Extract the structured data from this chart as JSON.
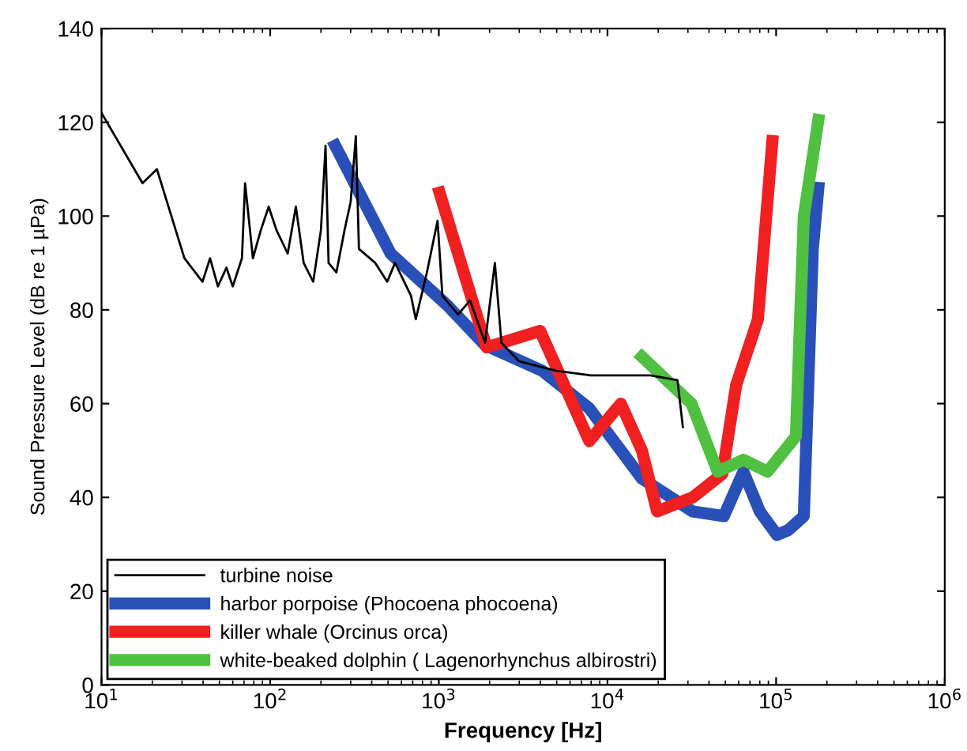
{
  "chart_data": {
    "type": "line",
    "xlabel": "Frequency [Hz]",
    "ylabel": "Sound Pressure Level (dB re 1 µPa)",
    "log": "x",
    "xlim": [
      10,
      1000000
    ],
    "ylim": [
      0,
      140
    ],
    "xticks": [
      {
        "value": 10,
        "label": "10$^{1}$"
      },
      {
        "value": 100,
        "label": "10$^{2}$"
      },
      {
        "value": 1000,
        "label": "10$^{3}$"
      },
      {
        "value": 10000,
        "label": "10$^{4}$"
      },
      {
        "value": 100000,
        "label": "10$^{5}$"
      },
      {
        "value": 1000000,
        "label": "10$^{6}$"
      }
    ],
    "yticks": [
      0,
      20,
      40,
      60,
      80,
      100,
      120,
      140
    ],
    "grid": false,
    "legend": "bottom left",
    "marker": "none",
    "line_style": "solid",
    "series": [
      {
        "name": "turbine noise",
        "color": "#000000",
        "x": [
          10,
          17.5,
          21.3,
          31,
          39.7,
          44,
          49,
          55,
          60,
          68,
          71,
          79,
          88,
          98,
          109,
          127,
          142,
          158,
          180,
          200,
          213,
          222,
          247,
          276,
          300,
          322,
          336,
          420,
          494,
          550,
          684,
          730,
          850,
          983,
          1050,
          1300,
          1530,
          1880,
          2150,
          2350,
          3000,
          5000,
          8000,
          12000,
          18000,
          26000,
          28000
        ],
        "values": [
          122,
          107,
          110,
          91,
          86,
          91,
          85,
          89,
          85,
          91,
          107,
          91,
          97,
          102,
          97,
          92,
          102,
          90,
          86,
          97,
          115,
          90,
          88,
          97,
          103,
          117,
          93,
          90,
          86,
          90,
          83,
          78,
          88,
          99,
          83,
          79,
          82,
          73,
          90,
          73,
          69,
          67,
          66,
          66,
          66,
          65,
          55
        ]
      },
      {
        "name": "harbor porpoise (Phocoena phocoena)",
        "color": "#2850b8",
        "x": [
          243,
          518,
          1120,
          1880,
          4100,
          7800,
          16000,
          32000,
          49000,
          64000,
          80000,
          101000,
          118000,
          146000,
          165000,
          178000
        ],
        "values": [
          115,
          92,
          81,
          72.5,
          67,
          59,
          44,
          37,
          36,
          45.5,
          37,
          32,
          33,
          36,
          93,
          106
        ]
      },
      {
        "name": "killer whale (Orcinus orca)",
        "color": "#f02020",
        "x": [
          1010,
          1920,
          3990,
          7800,
          12000,
          16000,
          19700,
          32000,
          48000,
          58000,
          78000,
          95000
        ],
        "values": [
          105,
          72,
          75.5,
          52,
          60,
          50,
          37,
          40,
          45,
          64,
          78,
          116
        ]
      },
      {
        "name": "white-beaked dolphin ( Lagenorhynchus albirostri)",
        "color": "#50c040",
        "x": [
          16000,
          31500,
          45000,
          64000,
          89000,
          131000,
          146000,
          178000
        ],
        "values": [
          70,
          60,
          45.5,
          48,
          45.5,
          53,
          100,
          120.5
        ]
      }
    ]
  }
}
